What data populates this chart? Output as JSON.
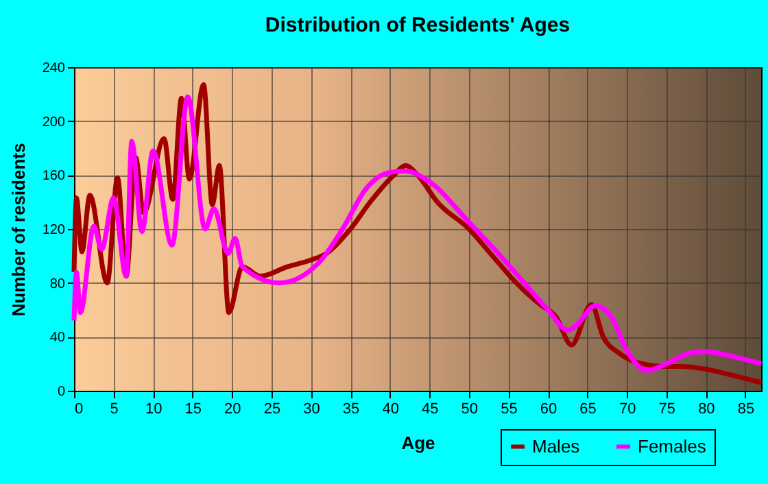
{
  "chart_data": {
    "type": "line",
    "title": "Distribution of Residents' Ages",
    "xlabel": "Age",
    "ylabel": "Number of residents",
    "xlim": [
      0,
      87
    ],
    "xticks": [
      0,
      5,
      10,
      15,
      20,
      25,
      30,
      35,
      40,
      45,
      50,
      55,
      60,
      65,
      70,
      75,
      80,
      85
    ],
    "ylim": [
      0,
      240
    ],
    "yticks": [
      0,
      40,
      80,
      120,
      160,
      200,
      240
    ],
    "grid": true,
    "legend": "bottom right",
    "series": [
      {
        "name": "Males",
        "color": "#a00000",
        "x": [
          0,
          0.3,
          1,
          2,
          4.2,
          5.5,
          6.6,
          7.8,
          8.8,
          11.4,
          12.5,
          13.6,
          14.6,
          16.4,
          17.5,
          18.4,
          19.6,
          21.3,
          23.6,
          27,
          30,
          32,
          35,
          37.5,
          40.5,
          42,
          43.5,
          46,
          50,
          53,
          56,
          59,
          61,
          63,
          65.5,
          67,
          69,
          72,
          75,
          77,
          80,
          83,
          87
        ],
        "values": [
          88,
          143,
          103,
          145,
          80,
          158,
          85,
          173,
          132,
          187,
          142,
          217,
          157,
          227,
          138,
          167,
          58,
          92,
          85,
          92,
          97,
          102,
          120,
          140,
          160,
          167,
          160,
          140,
          120,
          100,
          80,
          64,
          55,
          34,
          64,
          40,
          28,
          20,
          18,
          18,
          16,
          12,
          6
        ]
      },
      {
        "name": "Females",
        "color": "#ff00ff",
        "x": [
          0,
          0.3,
          0.8,
          2.5,
          3.5,
          5,
          6.6,
          7.3,
          8.6,
          10,
          12.4,
          14.4,
          16.6,
          17.7,
          19.5,
          20.4,
          21.3,
          26,
          31,
          34,
          37,
          40,
          42,
          45,
          50,
          54,
          57,
          60,
          62.5,
          63.5,
          66,
          68,
          70,
          72.5,
          75,
          78,
          80,
          83,
          87
        ],
        "values": [
          52,
          88,
          58,
          122,
          105,
          143,
          85,
          185,
          118,
          178,
          108,
          218,
          120,
          135,
          102,
          113,
          92,
          80,
          95,
          120,
          150,
          162,
          163,
          155,
          125,
          100,
          80,
          60,
          45,
          48,
          63,
          55,
          30,
          15,
          20,
          28,
          29,
          26,
          20
        ]
      }
    ]
  }
}
